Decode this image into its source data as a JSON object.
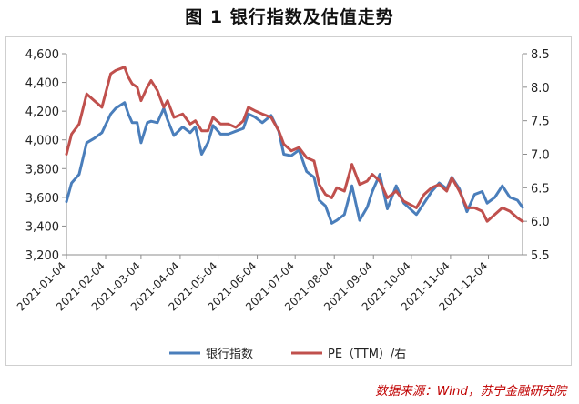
{
  "chart_data": {
    "type": "line",
    "title": "图 1  银行指数及估值走势",
    "xlabel": "",
    "ylabel": "",
    "x_ticks": [
      "2021-01-04",
      "2021-02-04",
      "2021-03-04",
      "2021-04-04",
      "2021-05-04",
      "2021-06-04",
      "2021-07-04",
      "2021-08-04",
      "2021-09-04",
      "2021-10-04",
      "2021-11-04",
      "2021-12-04"
    ],
    "x_range": [
      "2021-01-04",
      "2021-12-31"
    ],
    "y_left": {
      "min": 3200,
      "max": 4600,
      "ticks": [
        "3,200",
        "3,400",
        "3,600",
        "3,800",
        "4,000",
        "4,200",
        "4,400",
        "4,600"
      ]
    },
    "y_right": {
      "min": 5.5,
      "max": 8.5,
      "ticks": [
        "5.5",
        "6.0",
        "6.5",
        "7.0",
        "7.5",
        "8.0",
        "8.5"
      ]
    },
    "grid": false,
    "legend_position": "bottom",
    "series": [
      {
        "name": "银行指数",
        "axis": "left",
        "color": "#4A7EBB",
        "x": [
          "2021-01-04",
          "2021-01-08",
          "2021-01-14",
          "2021-01-20",
          "2021-01-26",
          "2021-02-01",
          "2021-02-08",
          "2021-02-12",
          "2021-02-19",
          "2021-02-22",
          "2021-02-25",
          "2021-03-01",
          "2021-03-04",
          "2021-03-09",
          "2021-03-12",
          "2021-03-17",
          "2021-03-22",
          "2021-03-25",
          "2021-03-30",
          "2021-04-06",
          "2021-04-12",
          "2021-04-16",
          "2021-04-21",
          "2021-04-26",
          "2021-04-30",
          "2021-05-06",
          "2021-05-12",
          "2021-05-18",
          "2021-05-24",
          "2021-05-28",
          "2021-06-02",
          "2021-06-08",
          "2021-06-15",
          "2021-06-21",
          "2021-06-25",
          "2021-07-01",
          "2021-07-07",
          "2021-07-13",
          "2021-07-19",
          "2021-07-23",
          "2021-07-28",
          "2021-08-02",
          "2021-08-06",
          "2021-08-12",
          "2021-08-18",
          "2021-08-24",
          "2021-08-30",
          "2021-09-03",
          "2021-09-09",
          "2021-09-15",
          "2021-09-22",
          "2021-09-28",
          "2021-10-08",
          "2021-10-14",
          "2021-10-20",
          "2021-10-26",
          "2021-11-01",
          "2021-11-05",
          "2021-11-11",
          "2021-11-17",
          "2021-11-23",
          "2021-11-29",
          "2021-12-03",
          "2021-12-09",
          "2021-12-15",
          "2021-12-21",
          "2021-12-27",
          "2021-12-31"
        ],
        "values": [
          3570,
          3700,
          3760,
          3980,
          4010,
          4050,
          4180,
          4220,
          4260,
          4180,
          4120,
          4120,
          3980,
          4120,
          4130,
          4120,
          4220,
          4140,
          4030,
          4090,
          4050,
          4090,
          3900,
          3980,
          4100,
          4040,
          4040,
          4060,
          4080,
          4180,
          4160,
          4120,
          4170,
          4060,
          3900,
          3890,
          3930,
          3780,
          3740,
          3580,
          3540,
          3420,
          3440,
          3480,
          3680,
          3440,
          3530,
          3640,
          3760,
          3520,
          3680,
          3560,
          3480,
          3560,
          3640,
          3700,
          3660,
          3740,
          3660,
          3500,
          3620,
          3640,
          3560,
          3600,
          3680,
          3600,
          3580,
          3530
        ]
      },
      {
        "name": "PE（TTM）/右",
        "axis": "right",
        "color": "#C0504D",
        "x": [
          "2021-01-04",
          "2021-01-08",
          "2021-01-14",
          "2021-01-20",
          "2021-01-26",
          "2021-02-01",
          "2021-02-08",
          "2021-02-12",
          "2021-02-19",
          "2021-02-22",
          "2021-02-25",
          "2021-03-01",
          "2021-03-04",
          "2021-03-09",
          "2021-03-12",
          "2021-03-17",
          "2021-03-22",
          "2021-03-25",
          "2021-03-30",
          "2021-04-06",
          "2021-04-12",
          "2021-04-16",
          "2021-04-21",
          "2021-04-26",
          "2021-04-30",
          "2021-05-06",
          "2021-05-12",
          "2021-05-18",
          "2021-05-24",
          "2021-05-28",
          "2021-06-02",
          "2021-06-08",
          "2021-06-15",
          "2021-06-21",
          "2021-06-25",
          "2021-07-01",
          "2021-07-07",
          "2021-07-13",
          "2021-07-19",
          "2021-07-23",
          "2021-07-28",
          "2021-08-02",
          "2021-08-06",
          "2021-08-12",
          "2021-08-18",
          "2021-08-24",
          "2021-08-30",
          "2021-09-03",
          "2021-09-09",
          "2021-09-15",
          "2021-09-22",
          "2021-09-28",
          "2021-10-08",
          "2021-10-14",
          "2021-10-20",
          "2021-10-26",
          "2021-11-01",
          "2021-11-05",
          "2021-11-11",
          "2021-11-17",
          "2021-11-23",
          "2021-11-29",
          "2021-12-03",
          "2021-12-09",
          "2021-12-15",
          "2021-12-21",
          "2021-12-27",
          "2021-12-31"
        ],
        "values": [
          7.0,
          7.3,
          7.45,
          7.9,
          7.8,
          7.7,
          8.2,
          8.25,
          8.3,
          8.15,
          8.05,
          8.0,
          7.8,
          8.0,
          8.1,
          7.95,
          7.7,
          7.8,
          7.55,
          7.6,
          7.45,
          7.5,
          7.35,
          7.35,
          7.55,
          7.45,
          7.45,
          7.4,
          7.5,
          7.7,
          7.65,
          7.6,
          7.55,
          7.35,
          7.15,
          7.05,
          7.1,
          6.95,
          6.9,
          6.55,
          6.4,
          6.35,
          6.5,
          6.45,
          6.85,
          6.55,
          6.6,
          6.7,
          6.6,
          6.35,
          6.45,
          6.3,
          6.2,
          6.4,
          6.5,
          6.55,
          6.45,
          6.65,
          6.45,
          6.2,
          6.2,
          6.15,
          6.0,
          6.1,
          6.2,
          6.15,
          6.05,
          6.0
        ]
      }
    ]
  },
  "source_note": "数据来源：Wind，苏宁金融研究院"
}
